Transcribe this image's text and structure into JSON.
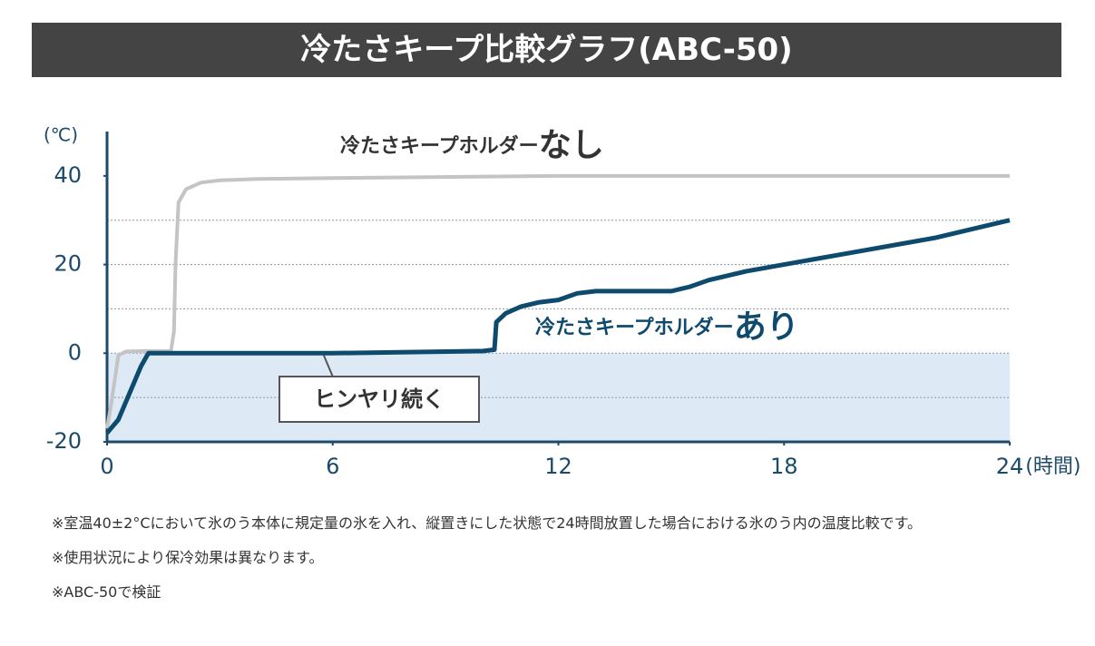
{
  "chart_data": {
    "type": "line",
    "title": "冷たさキープ比較グラフ(ABC-50)",
    "y_label": "(℃)",
    "x_label": "(時間)",
    "xlim": [
      0,
      24
    ],
    "xticks": [
      0,
      6,
      12,
      18,
      24
    ],
    "ylim": [
      -20,
      50
    ],
    "yticks": [
      -20,
      0,
      20,
      40
    ],
    "grid_lines": [
      -10,
      0,
      10,
      20,
      30
    ],
    "shade_below": 0,
    "series": [
      {
        "name_parts": [
          "冷たさキープホルダー",
          "なし"
        ],
        "color": "#c4c4c4",
        "x": [
          0,
          0.1,
          0.3,
          0.5,
          1.0,
          1.7,
          1.78,
          1.82,
          1.9,
          2.1,
          2.5,
          3.0,
          4.0,
          6.0,
          12.0,
          24.0
        ],
        "values": [
          -17,
          -12,
          -0.5,
          0.4,
          0.5,
          0.5,
          5,
          20,
          34,
          37,
          38.5,
          39,
          39.3,
          39.5,
          40,
          40
        ]
      },
      {
        "name_parts": [
          "冷たさキープホルダー",
          "あり"
        ],
        "color": "#0d4a6e",
        "x": [
          0,
          0.3,
          0.6,
          0.9,
          1.1,
          2,
          6,
          10,
          10.3,
          10.35,
          10.6,
          11,
          11.5,
          12,
          12.5,
          13,
          15,
          15.5,
          16,
          17,
          18,
          20,
          22,
          24
        ],
        "values": [
          -18,
          -15,
          -9,
          -3,
          0,
          0,
          0,
          0.5,
          0.8,
          7,
          9,
          10.5,
          11.5,
          12,
          13.5,
          14,
          14,
          15,
          16.5,
          18.5,
          20,
          23,
          26,
          30
        ]
      }
    ],
    "callout": {
      "text": "ヒンヤリ続く",
      "x": 6,
      "y": 0
    },
    "notes": [
      "※室温40±2°Cにおいて氷のう本体に規定量の氷を入れ、縦置きにした状態で24時間放置した場合における氷のう内の温度比較です。",
      "※使用状況により保冷効果は異なります。",
      "※ABC-50で検証"
    ]
  }
}
